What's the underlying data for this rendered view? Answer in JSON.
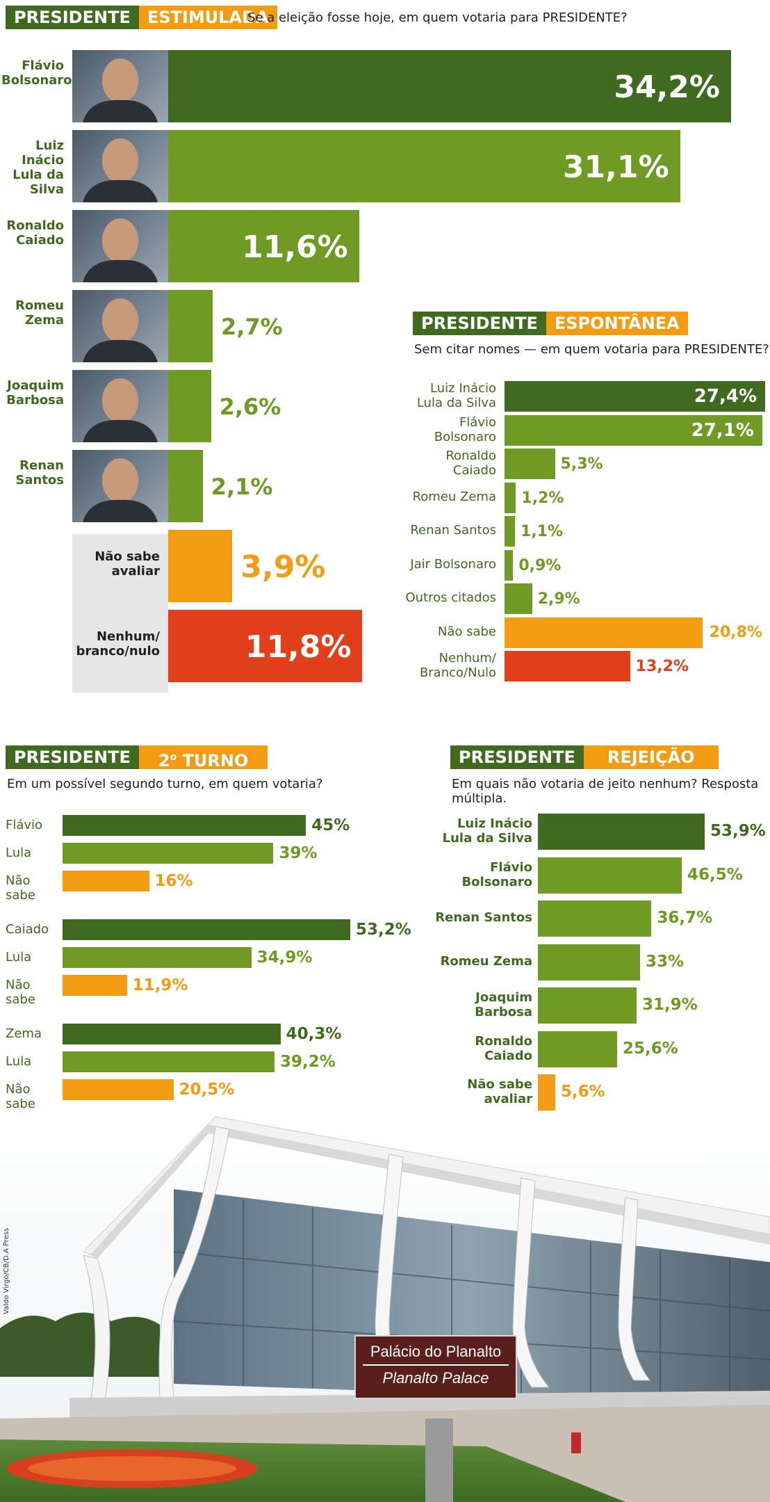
{
  "colors": {
    "dark_green": "#3f6a1f",
    "light_green": "#6f9a23",
    "orange": "#f39c12",
    "red": "#e2401b",
    "grey_box": "#e6e6e6"
  },
  "estimulada": {
    "header_a": "PRESIDENTE",
    "header_b": "ESTIMULADA",
    "question": "Se a eleição fosse hoje, em quem votaria para PRESIDENTE?",
    "candidates": [
      {
        "name": "Flávio\nBolsonaro",
        "value_text": "34,2%",
        "color": "dark"
      },
      {
        "name": "Luiz\nInácio\nLula da\nSilva",
        "value_text": "31,1%",
        "color": "light"
      },
      {
        "name": "Ronaldo\nCaiado",
        "value_text": "11,6%",
        "color": "light"
      },
      {
        "name": "Romeu\nZema",
        "value_text": "2,7%",
        "color": "light"
      },
      {
        "name": "Joaquim\nBarbosa",
        "value_text": "2,6%",
        "color": "light"
      },
      {
        "name": "Renan\nSantos",
        "value_text": "2,1%",
        "color": "light"
      },
      {
        "name": "Não sabe\navaliar",
        "value_text": "3,9%",
        "color": "orange"
      },
      {
        "name": "Nenhum/\nbranco/nulo",
        "value_text": "11,8%",
        "color": "red"
      }
    ]
  },
  "espontanea": {
    "header_a": "PRESIDENTE",
    "header_b": "ESPONTÂNEA",
    "question": "Sem citar nomes — em quem votaria para PRESIDENTE?",
    "items": [
      {
        "name": "Luiz Inácio\nLula da Silva",
        "value_text": "27,4%",
        "color": "dark"
      },
      {
        "name": "Flávio\nBolsonaro",
        "value_text": "27,1%",
        "color": "light"
      },
      {
        "name": "Ronaldo\nCaiado",
        "value_text": "5,3%",
        "color": "light"
      },
      {
        "name": "Romeu Zema",
        "value_text": "1,2%",
        "color": "light"
      },
      {
        "name": "Renan Santos",
        "value_text": "1,1%",
        "color": "light"
      },
      {
        "name": "Jair Bolsonaro",
        "value_text": "0,9%",
        "color": "light"
      },
      {
        "name": "Outros citados",
        "value_text": "2,9%",
        "color": "light"
      },
      {
        "name": "Não sabe",
        "value_text": "20,8%",
        "color": "orange"
      },
      {
        "name": "Nenhum/\nBranco/Nulo",
        "value_text": "13,2%",
        "color": "red"
      }
    ]
  },
  "segundo_turno": {
    "header_a": "PRESIDENTE",
    "header_b_num": "2",
    "header_b_sup": "o",
    "header_b_rest": "TURNO",
    "question": "Em um possível segundo turno, em quem votaria?",
    "groups": [
      [
        {
          "name": "Flávio",
          "value_text": "45%",
          "color": "dark"
        },
        {
          "name": "Lula",
          "value_text": "39%",
          "color": "light"
        },
        {
          "name": "Não sabe",
          "value_text": "16%",
          "color": "orange"
        }
      ],
      [
        {
          "name": "Caiado",
          "value_text": "53,2%",
          "color": "dark"
        },
        {
          "name": "Lula",
          "value_text": "34,9%",
          "color": "light"
        },
        {
          "name": "Não sabe",
          "value_text": "11,9%",
          "color": "orange"
        }
      ],
      [
        {
          "name": "Zema",
          "value_text": "40,3%",
          "color": "dark"
        },
        {
          "name": "Lula",
          "value_text": "39,2%",
          "color": "light"
        },
        {
          "name": "Não sabe",
          "value_text": "20,5%",
          "color": "orange"
        }
      ]
    ]
  },
  "rejeicao": {
    "header_a": "PRESIDENTE",
    "header_b": "REJEIÇÃO",
    "question": "Em quais não votaria de jeito nenhum? Resposta múltipla.",
    "items": [
      {
        "name": "Luiz Inácio\nLula da Silva",
        "value_text": "53,9%",
        "color": "dark"
      },
      {
        "name": "Flávio\nBolsonaro",
        "value_text": "46,5%",
        "color": "light"
      },
      {
        "name": "Renan Santos",
        "value_text": "36,7%",
        "color": "light"
      },
      {
        "name": "Romeu Zema",
        "value_text": "33%",
        "color": "light"
      },
      {
        "name": "Joaquim\nBarbosa",
        "value_text": "31,9%",
        "color": "light"
      },
      {
        "name": "Ronaldo\nCaiado",
        "value_text": "25,6%",
        "color": "light"
      },
      {
        "name": "Não sabe\navaliar",
        "value_text": "5,6%",
        "color": "orange"
      }
    ]
  },
  "photo": {
    "sign_line1": "Palácio do Planalto",
    "sign_line2": "Planalto Palace",
    "credit": "Valdo Virgo/CB/D.A Press"
  },
  "chart_data": [
    {
      "type": "bar",
      "title": "PRESIDENTE ESTIMULADA",
      "subtitle": "Se a eleição fosse hoje, em quem votaria para PRESIDENTE?",
      "categories": [
        "Flávio Bolsonaro",
        "Luiz Inácio Lula da Silva",
        "Ronaldo Caiado",
        "Romeu Zema",
        "Joaquim Barbosa",
        "Renan Santos",
        "Não sabe avaliar",
        "Nenhum/branco/nulo"
      ],
      "values": [
        34.2,
        31.1,
        11.6,
        2.7,
        2.6,
        2.1,
        3.9,
        11.8
      ]
    },
    {
      "type": "bar",
      "title": "PRESIDENTE ESPONTÂNEA",
      "subtitle": "Sem citar nomes — em quem votaria para PRESIDENTE?",
      "categories": [
        "Luiz Inácio Lula da Silva",
        "Flávio Bolsonaro",
        "Ronaldo Caiado",
        "Romeu Zema",
        "Renan Santos",
        "Jair Bolsonaro",
        "Outros citados",
        "Não sabe",
        "Nenhum/Branco/Nulo"
      ],
      "values": [
        27.4,
        27.1,
        5.3,
        1.2,
        1.1,
        0.9,
        2.9,
        20.8,
        13.2
      ]
    },
    {
      "type": "bar",
      "title": "PRESIDENTE 2º TURNO",
      "subtitle": "Em um possível segundo turno, em quem votaria?",
      "categories": [
        "Flávio",
        "Lula",
        "Não sabe",
        "Caiado",
        "Lula",
        "Não sabe",
        "Zema",
        "Lula",
        "Não sabe"
      ],
      "values": [
        45,
        39,
        16,
        53.2,
        34.9,
        11.9,
        40.3,
        39.2,
        20.5
      ]
    },
    {
      "type": "bar",
      "title": "PRESIDENTE REJEIÇÃO",
      "subtitle": "Em quais não votaria de jeito nenhum? Resposta múltipla.",
      "categories": [
        "Luiz Inácio Lula da Silva",
        "Flávio Bolsonaro",
        "Renan Santos",
        "Romeu Zema",
        "Joaquim Barbosa",
        "Ronaldo Caiado",
        "Não sabe avaliar"
      ],
      "values": [
        53.9,
        46.5,
        36.7,
        33,
        31.9,
        25.6,
        5.6
      ]
    }
  ]
}
